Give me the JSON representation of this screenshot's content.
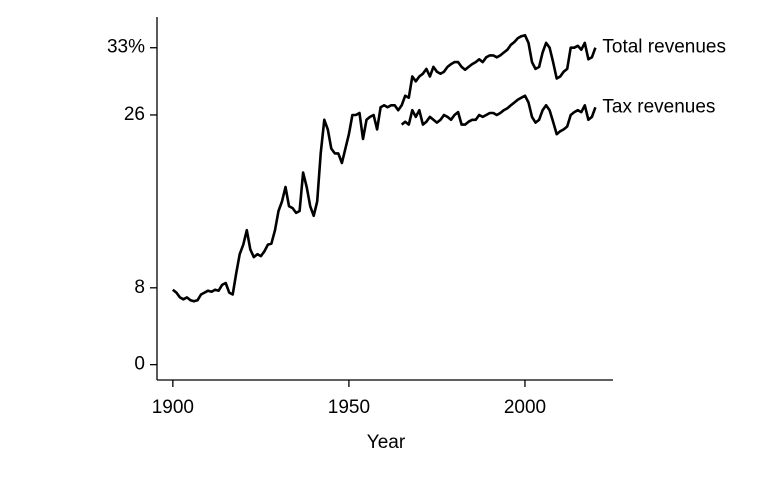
{
  "chart_data": {
    "type": "line",
    "x_label": "Year",
    "x": [
      1900,
      1901,
      1902,
      1903,
      1904,
      1905,
      1906,
      1907,
      1908,
      1909,
      1910,
      1911,
      1912,
      1913,
      1914,
      1915,
      1916,
      1917,
      1918,
      1919,
      1920,
      1921,
      1922,
      1923,
      1924,
      1925,
      1926,
      1927,
      1928,
      1929,
      1930,
      1931,
      1932,
      1933,
      1934,
      1935,
      1936,
      1937,
      1938,
      1939,
      1940,
      1941,
      1942,
      1943,
      1944,
      1945,
      1946,
      1947,
      1948,
      1949,
      1950,
      1951,
      1952,
      1953,
      1954,
      1955,
      1956,
      1957,
      1958,
      1959,
      1960,
      1961,
      1962,
      1963,
      1964,
      1965,
      1966,
      1967,
      1968,
      1969,
      1970,
      1971,
      1972,
      1973,
      1974,
      1975,
      1976,
      1977,
      1978,
      1979,
      1980,
      1981,
      1982,
      1983,
      1984,
      1985,
      1986,
      1987,
      1988,
      1989,
      1990,
      1991,
      1992,
      1993,
      1994,
      1995,
      1996,
      1997,
      1998,
      1999,
      2000,
      2001,
      2002,
      2003,
      2004,
      2005,
      2006,
      2007,
      2008,
      2009,
      2010,
      2011,
      2012,
      2013,
      2014,
      2015,
      2016,
      2017,
      2018,
      2019,
      2020
    ],
    "series": [
      {
        "name": "Total revenues",
        "color": "#000000",
        "values": [
          7.8,
          7.5,
          7.0,
          6.8,
          7.0,
          6.7,
          6.6,
          6.7,
          7.3,
          7.5,
          7.7,
          7.6,
          7.8,
          7.7,
          8.3,
          8.5,
          7.5,
          7.3,
          9.5,
          11.5,
          12.5,
          14.0,
          12.0,
          11.2,
          11.5,
          11.3,
          11.8,
          12.5,
          12.6,
          14.0,
          16.0,
          17.0,
          18.5,
          16.5,
          16.3,
          15.8,
          16.0,
          20.0,
          18.5,
          16.5,
          15.5,
          17.0,
          22.0,
          25.5,
          24.5,
          22.5,
          22.0,
          22.0,
          21.0,
          22.5,
          24.0,
          26.0,
          26.0,
          26.2,
          23.5,
          25.5,
          25.8,
          26.0,
          24.5,
          26.8,
          27.0,
          26.8,
          27.0,
          27.0,
          26.5,
          27.0,
          28.0,
          27.8,
          30.0,
          29.5,
          30.0,
          30.3,
          30.8,
          30.0,
          31.0,
          30.5,
          30.3,
          30.5,
          31.0,
          31.3,
          31.5,
          31.5,
          31.0,
          30.7,
          31.0,
          31.3,
          31.5,
          31.8,
          31.5,
          32.0,
          32.2,
          32.2,
          32.0,
          32.2,
          32.5,
          32.8,
          33.3,
          33.6,
          34.0,
          34.2,
          34.3,
          33.5,
          31.5,
          30.8,
          31.0,
          32.5,
          33.5,
          33.0,
          31.5,
          29.8,
          30.0,
          30.5,
          30.8,
          33.0,
          33.0,
          33.2,
          32.8,
          33.5,
          31.8,
          32.0,
          33.0
        ]
      },
      {
        "name": "Tax revenues",
        "color": "#000000",
        "values": [
          null,
          null,
          null,
          null,
          null,
          null,
          null,
          null,
          null,
          null,
          null,
          null,
          null,
          null,
          null,
          null,
          null,
          null,
          null,
          null,
          null,
          null,
          null,
          null,
          null,
          null,
          null,
          null,
          null,
          null,
          null,
          null,
          null,
          null,
          null,
          null,
          null,
          null,
          null,
          null,
          null,
          null,
          null,
          null,
          null,
          null,
          null,
          null,
          null,
          null,
          null,
          null,
          null,
          null,
          null,
          null,
          null,
          null,
          null,
          null,
          null,
          null,
          null,
          null,
          null,
          25.0,
          25.3,
          25.0,
          26.5,
          25.8,
          26.5,
          25.0,
          25.3,
          25.8,
          25.5,
          25.2,
          25.5,
          26.0,
          25.8,
          25.5,
          26.0,
          26.3,
          25.0,
          25.0,
          25.3,
          25.5,
          25.5,
          26.0,
          25.8,
          26.0,
          26.2,
          26.2,
          26.0,
          26.2,
          26.5,
          26.7,
          27.0,
          27.3,
          27.6,
          27.8,
          28.0,
          27.3,
          25.8,
          25.2,
          25.5,
          26.5,
          27.0,
          26.5,
          25.3,
          24.0,
          24.3,
          24.5,
          24.8,
          26.0,
          26.3,
          26.5,
          26.3,
          27.0,
          25.5,
          25.8,
          26.8
        ]
      }
    ],
    "xlim": [
      1895.5,
      2025
    ],
    "ylim": [
      -1.6,
      36.2
    ],
    "xticks": [
      1900,
      1950,
      2000
    ],
    "yticks": [
      0,
      8,
      26,
      {
        "value": 33,
        "label": "33%"
      }
    ],
    "grid": false
  }
}
